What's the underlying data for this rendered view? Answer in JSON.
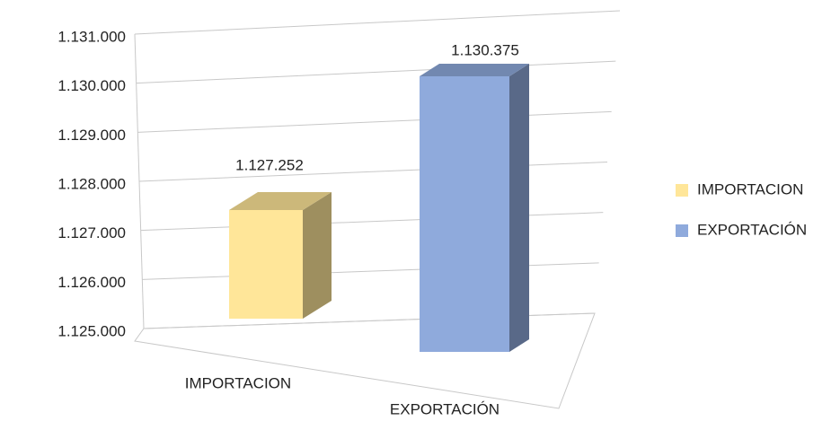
{
  "chart_data": {
    "type": "bar3d",
    "categories": [
      "IMPORTACION",
      "EXPORTACIÓN"
    ],
    "values": [
      1127252,
      1130375
    ],
    "value_labels": [
      "1.127.252",
      "1.130.375"
    ],
    "colors": [
      "#ffe699",
      "#8faadc"
    ],
    "ylim": [
      1125000,
      1131000
    ],
    "yticks": [
      {
        "value": 1125000,
        "label": "1.125.000"
      },
      {
        "value": 1126000,
        "label": "1.126.000"
      },
      {
        "value": 1127000,
        "label": "1.127.000"
      },
      {
        "value": 1128000,
        "label": "1.128.000"
      },
      {
        "value": 1129000,
        "label": "1.129.000"
      },
      {
        "value": 1130000,
        "label": "1.130.000"
      },
      {
        "value": 1131000,
        "label": "1.131.000"
      }
    ],
    "grid": true,
    "legend": "right"
  }
}
